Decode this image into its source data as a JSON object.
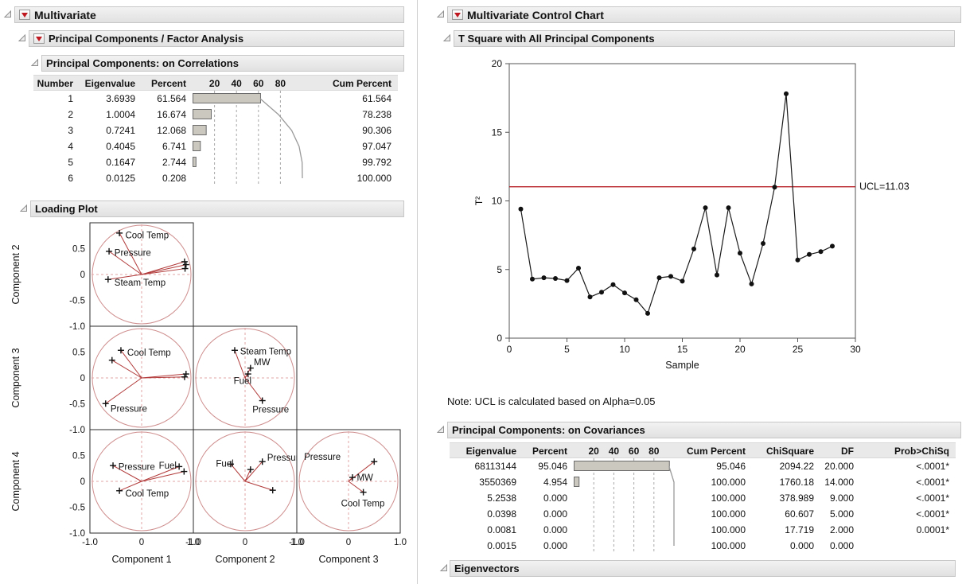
{
  "colors": {
    "red": "#b11117",
    "bar_fill": "#cbc8c0",
    "bar_stroke": "#6b6b6b",
    "circle_stroke": "#cf8e8e",
    "vector": "#b23a3a",
    "crosshair": "#e0a6a6",
    "curve": "#9a9a9a"
  },
  "left_panel": {
    "title": "Multivariate",
    "factor_section_title": "Principal Components / Factor Analysis",
    "correlations_table": {
      "title": "Principal Components: on Correlations",
      "headers": [
        "Number",
        "Eigenvalue",
        "Percent",
        "Cum Percent"
      ],
      "rows": [
        [
          "1",
          "3.6939",
          "61.564",
          "61.564"
        ],
        [
          "2",
          "1.0004",
          "16.674",
          "78.238"
        ],
        [
          "3",
          "0.7241",
          "12.068",
          "90.306"
        ],
        [
          "4",
          "0.4045",
          "6.741",
          "97.047"
        ],
        [
          "5",
          "0.1647",
          "2.744",
          "99.792"
        ],
        [
          "6",
          "0.0125",
          "0.208",
          "100.000"
        ]
      ]
    },
    "loading_plot": {
      "title": "Loading Plot"
    }
  },
  "right_panel": {
    "title": "Multivariate Control Chart",
    "tsquare_section_title": "T Square with All Principal Components",
    "note": "Note: UCL is calculated based on Alpha=0.05",
    "covariances_table": {
      "title": "Principal Components: on Covariances",
      "headers": [
        "Eigenvalue",
        "Percent",
        "Cum Percent",
        "ChiSquare",
        "DF",
        "Prob>ChiSq"
      ],
      "rows": [
        [
          "68113144",
          "95.046",
          "95.046",
          "2094.22",
          "20.000",
          "<.0001*"
        ],
        [
          "3550369",
          "4.954",
          "100.000",
          "1760.18",
          "14.000",
          "<.0001*"
        ],
        [
          "5.2538",
          "0.000",
          "100.000",
          "378.989",
          "9.000",
          "<.0001*"
        ],
        [
          "0.0398",
          "0.000",
          "100.000",
          "60.607",
          "5.000",
          "<.0001*"
        ],
        [
          "0.0081",
          "0.000",
          "100.000",
          "17.719",
          "2.000",
          "0.0001*"
        ],
        [
          "0.0015",
          "0.000",
          "100.000",
          "0.000",
          "0.000",
          ""
        ]
      ]
    },
    "eigenvectors_title": "Eigenvectors"
  },
  "chart_data": [
    {
      "id": "scree_correlations",
      "type": "bar",
      "orientation": "horizontal",
      "categories": [
        "1",
        "2",
        "3",
        "4",
        "5",
        "6"
      ],
      "values": [
        61.564,
        16.674,
        12.068,
        6.741,
        2.744,
        0.208
      ],
      "cumulative": [
        61.564,
        78.238,
        90.306,
        97.047,
        99.792,
        100.0
      ],
      "gridlines": [
        20,
        40,
        60,
        80
      ],
      "xlim": [
        0,
        100
      ],
      "title": "",
      "xlabel": "",
      "ylabel": ""
    },
    {
      "id": "scree_covariances",
      "type": "bar",
      "orientation": "horizontal",
      "categories": [
        "1",
        "2",
        "3",
        "4",
        "5",
        "6"
      ],
      "values": [
        95.046,
        4.954,
        0.0,
        0.0,
        0.0,
        0.0
      ],
      "cumulative": [
        95.046,
        100.0,
        100.0,
        100.0,
        100.0,
        100.0
      ],
      "gridlines": [
        20,
        40,
        60,
        80
      ],
      "xlim": [
        0,
        100
      ],
      "title": "",
      "xlabel": "",
      "ylabel": ""
    },
    {
      "id": "tsquare_control_chart",
      "type": "line",
      "title": "T Square with All Principal Components",
      "xlabel": "Sample",
      "ylabel": "T²",
      "xlim": [
        0,
        30
      ],
      "ylim": [
        0,
        20
      ],
      "x_ticks": [
        0,
        5,
        10,
        15,
        20,
        25,
        30
      ],
      "y_ticks": [
        0,
        5,
        10,
        15,
        20
      ],
      "ucl": 11.03,
      "ucl_label": "UCL=11.03",
      "x": [
        1,
        2,
        3,
        4,
        5,
        6,
        7,
        8,
        9,
        10,
        11,
        12,
        13,
        14,
        15,
        16,
        17,
        18,
        19,
        20,
        21,
        22,
        23,
        24,
        25,
        26,
        27,
        28
      ],
      "y": [
        9.4,
        4.3,
        4.4,
        4.35,
        4.2,
        5.1,
        3.0,
        3.35,
        3.9,
        3.3,
        2.8,
        1.8,
        4.4,
        4.5,
        4.15,
        6.5,
        9.5,
        4.6,
        9.5,
        6.2,
        3.95,
        6.9,
        11.0,
        17.8,
        5.7,
        6.1,
        6.3,
        6.7
      ]
    },
    {
      "id": "loading_plot",
      "type": "scatter",
      "title": "Loading Plot",
      "x_axis_labels": [
        "Component 1",
        "Component 2",
        "Component 3"
      ],
      "y_axis_labels": [
        "Component 2",
        "Component 3",
        "Component 4"
      ],
      "axis_ticks": [
        -1.0,
        -0.5,
        0,
        0.5,
        1.0
      ],
      "xlim": [
        -1,
        1
      ],
      "ylim": [
        -1,
        1
      ],
      "cells": [
        {
          "row": 0,
          "col": 0,
          "points": [
            [
              -0.45,
              0.84
            ],
            [
              -0.66,
              0.47
            ],
            [
              -0.68,
              -0.1
            ],
            [
              0.88,
              0.12
            ],
            [
              0.9,
              0.2
            ],
            [
              0.87,
              0.26
            ]
          ],
          "labels": [
            {
              "t": "Cool Temp",
              "x": -0.38,
              "y": 0.8
            },
            {
              "t": "Pressure",
              "x": -0.6,
              "y": 0.44
            },
            {
              "t": "Steam Temp",
              "x": -0.6,
              "y": -0.16
            }
          ]
        },
        {
          "row": 1,
          "col": 0,
          "points": [
            [
              -0.42,
              0.56
            ],
            [
              -0.6,
              0.36
            ],
            [
              -0.73,
              -0.52
            ],
            [
              0.9,
              0.08
            ],
            [
              0.87,
              0.02
            ]
          ],
          "labels": [
            {
              "t": "Cool Temp",
              "x": -0.34,
              "y": 0.52
            },
            {
              "t": "Pressure",
              "x": -0.68,
              "y": -0.62
            }
          ]
        },
        {
          "row": 1,
          "col": 1,
          "points": [
            [
              -0.21,
              0.56
            ],
            [
              0.11,
              0.2
            ],
            [
              0.06,
              0.08
            ],
            [
              0.35,
              -0.46
            ]
          ],
          "labels": [
            {
              "t": "Steam Temp",
              "x": -0.15,
              "y": 0.54
            },
            {
              "t": "MW",
              "x": 0.13,
              "y": 0.32
            },
            {
              "t": "Fuel",
              "x": -0.28,
              "y": -0.06
            },
            {
              "t": "Pressure",
              "x": 0.1,
              "y": -0.64
            }
          ]
        },
        {
          "row": 2,
          "col": 0,
          "points": [
            [
              -0.58,
              0.32
            ],
            [
              -0.45,
              -0.19
            ],
            [
              0.76,
              0.3
            ],
            [
              0.86,
              0.2
            ]
          ],
          "labels": [
            {
              "t": "Pressure",
              "x": -0.52,
              "y": 0.3
            },
            {
              "t": "Fuel",
              "x": 0.3,
              "y": 0.32
            },
            {
              "t": "Cool Temp",
              "x": -0.38,
              "y": -0.24
            }
          ]
        },
        {
          "row": 2,
          "col": 1,
          "points": [
            [
              -0.29,
              0.35
            ],
            [
              0.11,
              0.24
            ],
            [
              0.35,
              0.4
            ],
            [
              0.56,
              -0.18
            ]
          ],
          "labels": [
            {
              "t": "Fuel",
              "x": -0.64,
              "y": 0.36
            },
            {
              "t": "Pressure",
              "x": 0.4,
              "y": 0.48
            }
          ]
        },
        {
          "row": 2,
          "col": 2,
          "points": [
            [
              0.52,
              0.4
            ],
            [
              0.08,
              0.08
            ],
            [
              0.3,
              -0.22
            ]
          ],
          "labels": [
            {
              "t": "Pressure",
              "x": -0.95,
              "y": 0.5
            },
            {
              "t": "MW",
              "x": 0.12,
              "y": 0.08
            },
            {
              "t": "Cool Temp",
              "x": -0.2,
              "y": -0.44
            }
          ]
        }
      ]
    }
  ]
}
